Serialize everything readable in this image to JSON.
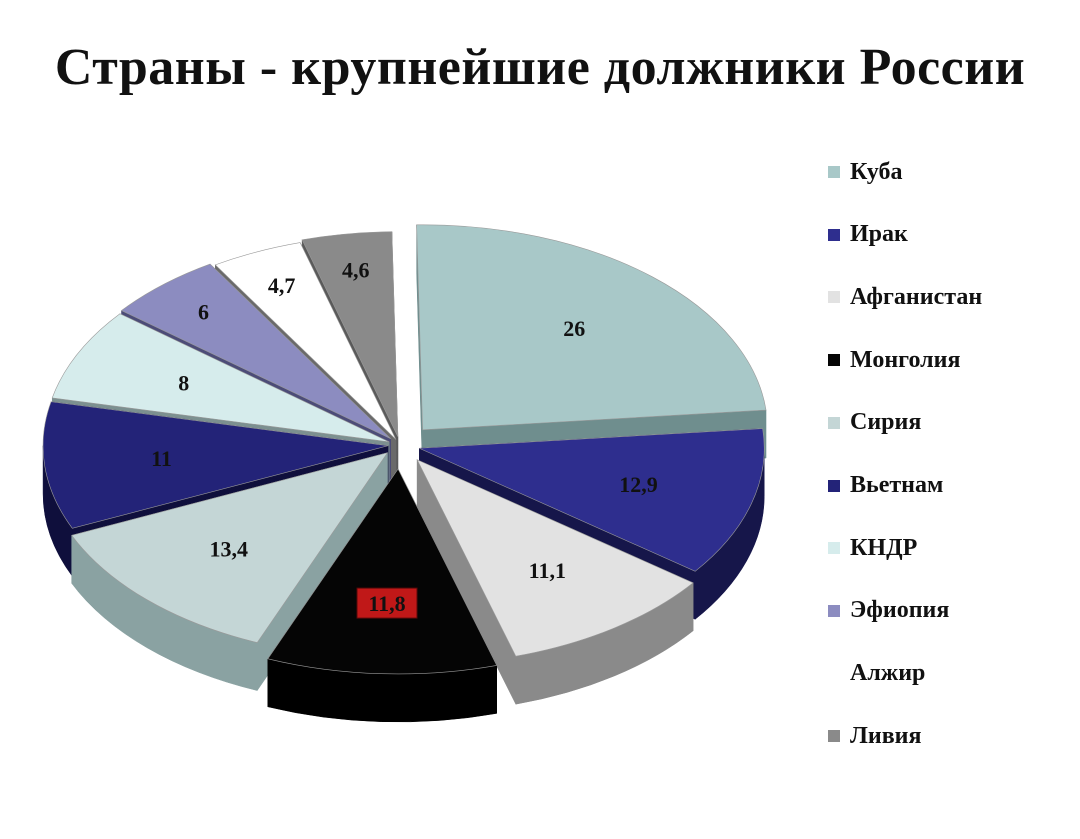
{
  "chart_data": {
    "type": "pie",
    "title": "Страны - крупнейшие должники России",
    "legend_position": "right",
    "slices": [
      {
        "label": "Куба",
        "value": 26,
        "value_label": "26",
        "color": "#a8c8c8",
        "side": "#6f8e8e"
      },
      {
        "label": "Ирак",
        "value": 12.9,
        "value_label": "12,9",
        "color": "#2e2e8e",
        "side": "#16164a"
      },
      {
        "label": "Афганистан",
        "value": 11.1,
        "value_label": "11,1",
        "color": "#e2e2e2",
        "side": "#8a8a8a"
      },
      {
        "label": "Монголия",
        "value": 11.8,
        "value_label": "11,8",
        "color": "#050505",
        "side": "#000000",
        "label_bg": "#c01818"
      },
      {
        "label": "Сирия",
        "value": 13.4,
        "value_label": "13,4",
        "color": "#c4d6d6",
        "side": "#8aa2a2"
      },
      {
        "label": "Вьетнам",
        "value": 11,
        "value_label": "11",
        "color": "#232378",
        "side": "#0f0f3c"
      },
      {
        "label": "КНДР",
        "value": 8,
        "value_label": "8",
        "color": "#d6ecec",
        "side": "#7c9090"
      },
      {
        "label": "Эфиопия",
        "value": 6,
        "value_label": "6",
        "color": "#8c8cc0",
        "side": "#4c4c78"
      },
      {
        "label": "Алжир",
        "value": 4.7,
        "value_label": "4,7",
        "color": "#ffffff",
        "side": "#6a6a6a"
      },
      {
        "label": "Ливия",
        "value": 4.6,
        "value_label": "4,6",
        "color": "#8a8a8a",
        "side": "#5a5a5a"
      }
    ]
  }
}
